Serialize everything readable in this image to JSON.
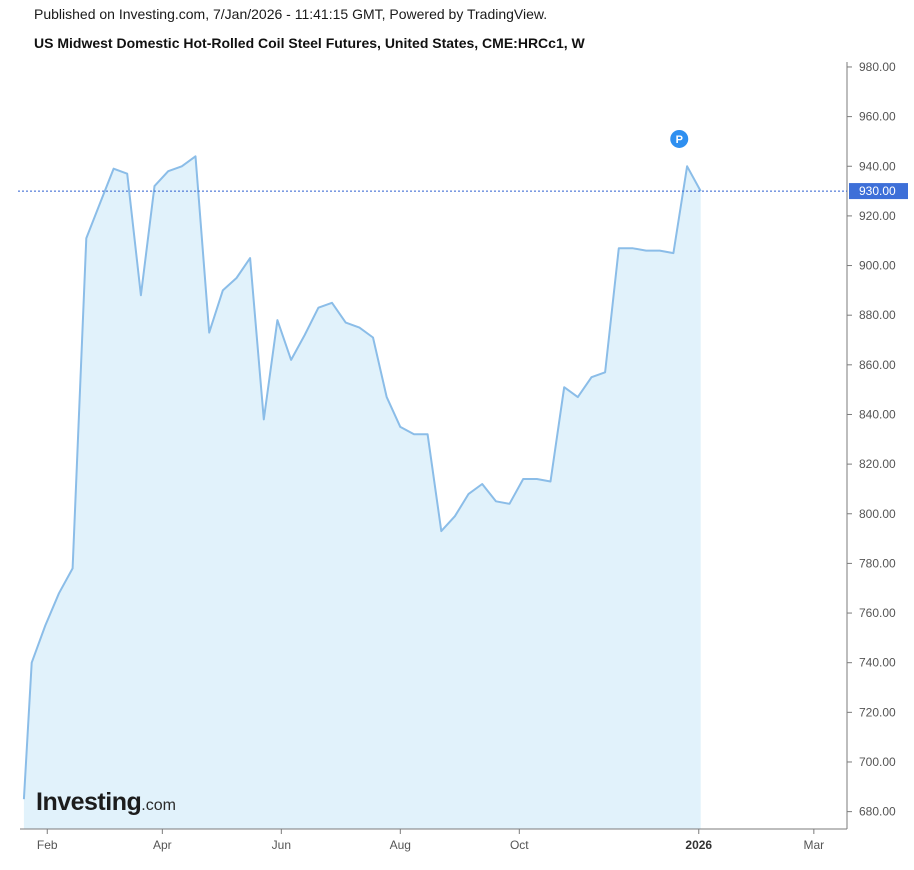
{
  "header": {
    "published": "Published on Investing.com, 7/Jan/2026 - 11:41:15 GMT, Powered by TradingView.",
    "title": "US Midwest Domestic Hot-Rolled Coil Steel Futures, United States, CME:HRCc1, W"
  },
  "logo": {
    "brand": "Investing",
    "suffix": ".com"
  },
  "colors": {
    "line": "#8bbde8",
    "area": "#e1f2fb",
    "price_line": "#2f5fd0",
    "price_badge": "#3d6fd8",
    "marker": "#2e8ff0",
    "axis": "#7b7b7b"
  },
  "chart_data": {
    "type": "area",
    "title": "US Midwest Domestic Hot-Rolled Coil Steel Futures, United States, CME:HRCc1, W",
    "x_tick_labels": [
      "Feb",
      "Apr",
      "Jun",
      "Aug",
      "Oct",
      "2026",
      "Mar"
    ],
    "x_ticks": [
      {
        "label": "Feb",
        "date": "2025-02-01",
        "bold": false
      },
      {
        "label": "Apr",
        "date": "2025-04-01",
        "bold": false
      },
      {
        "label": "Jun",
        "date": "2025-06-01",
        "bold": false
      },
      {
        "label": "Aug",
        "date": "2025-08-01",
        "bold": false
      },
      {
        "label": "Oct",
        "date": "2025-10-01",
        "bold": false
      },
      {
        "label": "2026",
        "date": "2026-01-01",
        "bold": true
      },
      {
        "label": "Mar",
        "date": "2026-03-01",
        "bold": false
      }
    ],
    "y_ticks": [
      680,
      700,
      720,
      740,
      760,
      780,
      800,
      820,
      840,
      860,
      880,
      900,
      920,
      940,
      960,
      980
    ],
    "ylim": [
      673,
      982
    ],
    "xlim": [
      "2025-01-17",
      "2026-03-18"
    ],
    "last_price": 930,
    "last_price_label": "930.00",
    "marker_label": "P",
    "marker_point": {
      "date": "2025-12-22",
      "value": 951
    },
    "points": [
      {
        "date": "2025-01-20",
        "value": 685
      },
      {
        "date": "2025-01-24",
        "value": 740
      },
      {
        "date": "2025-01-31",
        "value": 755
      },
      {
        "date": "2025-02-07",
        "value": 768
      },
      {
        "date": "2025-02-14",
        "value": 778
      },
      {
        "date": "2025-02-21",
        "value": 911
      },
      {
        "date": "2025-02-28",
        "value": 925
      },
      {
        "date": "2025-03-07",
        "value": 939
      },
      {
        "date": "2025-03-14",
        "value": 937
      },
      {
        "date": "2025-03-21",
        "value": 888
      },
      {
        "date": "2025-03-28",
        "value": 932
      },
      {
        "date": "2025-04-04",
        "value": 938
      },
      {
        "date": "2025-04-11",
        "value": 940
      },
      {
        "date": "2025-04-18",
        "value": 944
      },
      {
        "date": "2025-04-25",
        "value": 873
      },
      {
        "date": "2025-05-02",
        "value": 890
      },
      {
        "date": "2025-05-09",
        "value": 895
      },
      {
        "date": "2025-05-16",
        "value": 903
      },
      {
        "date": "2025-05-23",
        "value": 838
      },
      {
        "date": "2025-05-30",
        "value": 878
      },
      {
        "date": "2025-06-06",
        "value": 862
      },
      {
        "date": "2025-06-13",
        "value": 872
      },
      {
        "date": "2025-06-20",
        "value": 883
      },
      {
        "date": "2025-06-27",
        "value": 885
      },
      {
        "date": "2025-07-04",
        "value": 877
      },
      {
        "date": "2025-07-11",
        "value": 875
      },
      {
        "date": "2025-07-18",
        "value": 871
      },
      {
        "date": "2025-07-25",
        "value": 847
      },
      {
        "date": "2025-08-01",
        "value": 835
      },
      {
        "date": "2025-08-08",
        "value": 832
      },
      {
        "date": "2025-08-15",
        "value": 832
      },
      {
        "date": "2025-08-22",
        "value": 793
      },
      {
        "date": "2025-08-29",
        "value": 799
      },
      {
        "date": "2025-09-05",
        "value": 808
      },
      {
        "date": "2025-09-12",
        "value": 812
      },
      {
        "date": "2025-09-19",
        "value": 805
      },
      {
        "date": "2025-09-26",
        "value": 804
      },
      {
        "date": "2025-10-03",
        "value": 814
      },
      {
        "date": "2025-10-10",
        "value": 814
      },
      {
        "date": "2025-10-17",
        "value": 813
      },
      {
        "date": "2025-10-24",
        "value": 851
      },
      {
        "date": "2025-10-31",
        "value": 847
      },
      {
        "date": "2025-11-07",
        "value": 855
      },
      {
        "date": "2025-11-14",
        "value": 857
      },
      {
        "date": "2025-11-21",
        "value": 907
      },
      {
        "date": "2025-11-28",
        "value": 907
      },
      {
        "date": "2025-12-05",
        "value": 906
      },
      {
        "date": "2025-12-12",
        "value": 906
      },
      {
        "date": "2025-12-19",
        "value": 905
      },
      {
        "date": "2025-12-26",
        "value": 940
      },
      {
        "date": "2026-01-02",
        "value": 930
      }
    ],
    "grid": false,
    "legend": "none"
  }
}
